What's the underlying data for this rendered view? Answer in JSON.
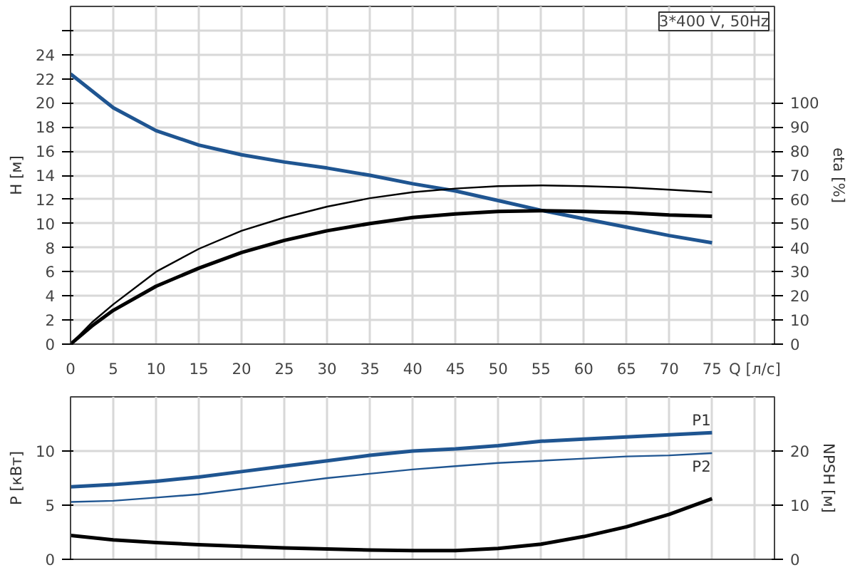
{
  "chart_data": [
    {
      "type": "line",
      "title": "3*400 V, 50Hz",
      "xlabel": "Q [л/с]",
      "ylabel": "H [м]",
      "y2label": "eta [%]",
      "x": [
        0,
        2.5,
        5,
        10,
        15,
        20,
        25,
        30,
        35,
        40,
        45,
        50,
        55,
        60,
        65,
        70,
        75
      ],
      "xlim": [
        0,
        82.3
      ],
      "xticks": [
        0,
        5,
        10,
        15,
        20,
        25,
        30,
        35,
        40,
        45,
        50,
        55,
        60,
        65,
        70,
        75,
        {
          "value": 80,
          "label": null
        }
      ],
      "ylim": [
        0,
        28
      ],
      "yticks": [
        0,
        2,
        4,
        6,
        8,
        10,
        12,
        14,
        16,
        18,
        20,
        22,
        24,
        {
          "value": 26,
          "label": null
        }
      ],
      "y2lim": [
        0,
        140
      ],
      "y2ticks": [
        0,
        10,
        20,
        30,
        40,
        50,
        60,
        70,
        80,
        90,
        100
      ],
      "grid": true,
      "series": [
        {
          "color": "#1f5591",
          "values": [
            22.4,
            21.0,
            19.6,
            17.7,
            16.5,
            15.7,
            15.1,
            14.6,
            14.0,
            13.3,
            12.7,
            11.9,
            11.1,
            10.4,
            9.7,
            9.0,
            8.4
          ]
        },
        {
          "color": "#000000",
          "axis": "y2",
          "values": [
            0,
            9,
            16.5,
            30,
            39.5,
            47,
            52.5,
            57,
            60.5,
            63,
            64.5,
            65.5,
            65.8,
            65.5,
            65,
            64,
            63
          ]
        },
        {
          "color": "#000000",
          "axis": "y2",
          "values": [
            0,
            7.5,
            14,
            24,
            31.5,
            38,
            43,
            47,
            50,
            52.5,
            54,
            55,
            55.3,
            55,
            54.5,
            53.5,
            53
          ]
        }
      ]
    },
    {
      "type": "line",
      "ylabel": "P [кВт]",
      "y2label": "NPSH [м]",
      "tick_labels": "y",
      "x": [
        0,
        5,
        10,
        15,
        20,
        25,
        30,
        35,
        40,
        45,
        50,
        55,
        60,
        65,
        70,
        75
      ],
      "xlim": [
        0,
        82.3
      ],
      "xticks": [
        0,
        5,
        10,
        15,
        20,
        25,
        30,
        35,
        40,
        45,
        50,
        55,
        60,
        65,
        70,
        75,
        80
      ],
      "ylim": [
        0,
        15
      ],
      "yticks": [
        0,
        5,
        10
      ],
      "y2lim": [
        0,
        30
      ],
      "y2ticks": [
        0,
        10,
        20
      ],
      "grid": true,
      "series": [
        {
          "name": "P1",
          "color": "#1f5591",
          "values": [
            6.7,
            6.9,
            7.2,
            7.6,
            8.1,
            8.6,
            9.1,
            9.6,
            10.0,
            10.2,
            10.5,
            10.9,
            11.1,
            11.3,
            11.5,
            11.7
          ]
        },
        {
          "name": "P2",
          "color": "#1f5591",
          "values": [
            5.3,
            5.4,
            5.7,
            6.0,
            6.5,
            7.0,
            7.5,
            7.9,
            8.3,
            8.6,
            8.9,
            9.1,
            9.3,
            9.5,
            9.6,
            9.8
          ]
        },
        {
          "color": "#000000",
          "axis": "y2",
          "values": [
            4.4,
            3.6,
            3.1,
            2.7,
            2.4,
            2.1,
            1.9,
            1.7,
            1.6,
            1.6,
            2.0,
            2.8,
            4.2,
            6.0,
            8.3,
            11.2
          ]
        }
      ]
    }
  ]
}
